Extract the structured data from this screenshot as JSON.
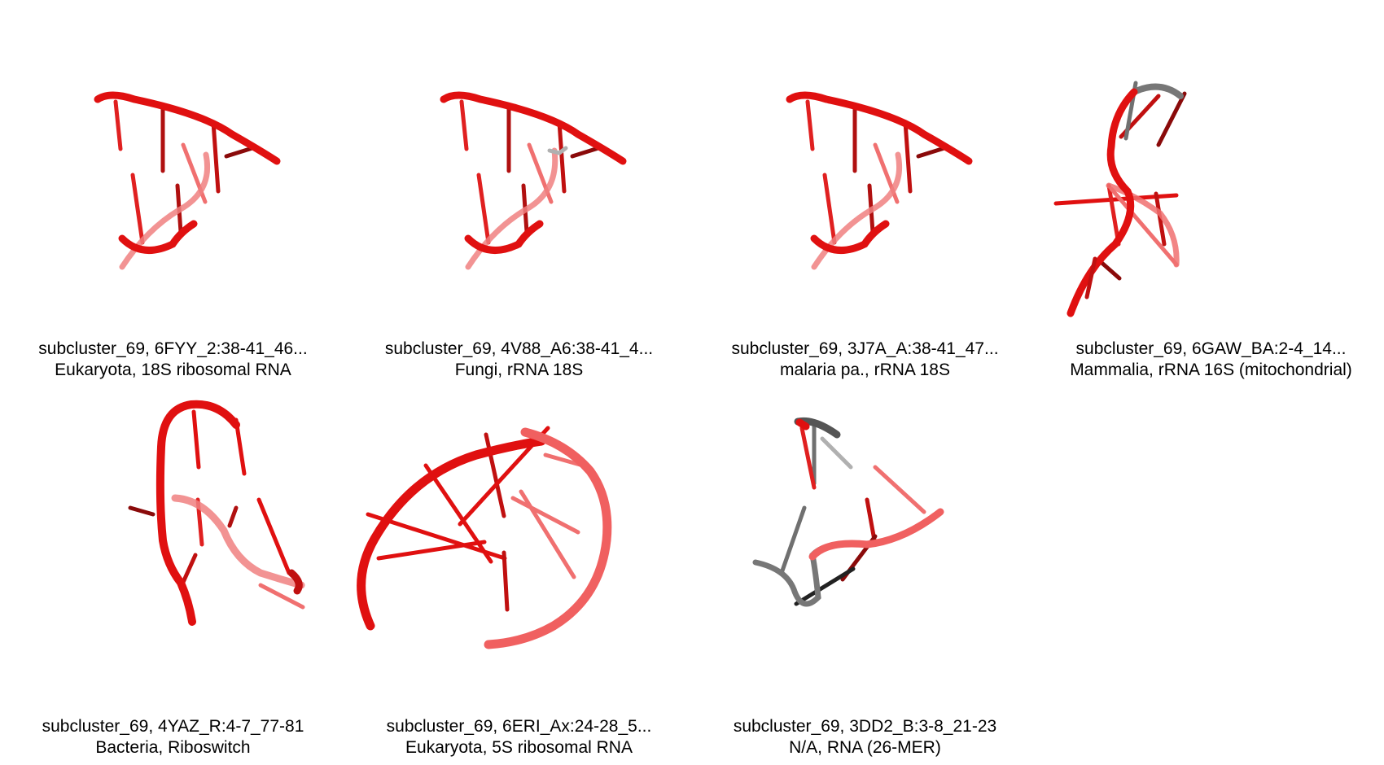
{
  "panels": [
    {
      "line1": "subcluster_69, 6FYY_2:38-41_46...",
      "line2": "Eukaryota, 18S ribosomal RNA"
    },
    {
      "line1": "subcluster_69, 4V88_A6:38-41_4...",
      "line2": "Fungi, rRNA 18S"
    },
    {
      "line1": "subcluster_69, 3J7A_A:38-41_47...",
      "line2": "malaria pa., rRNA 18S"
    },
    {
      "line1": "subcluster_69, 6GAW_BA:2-4_14...",
      "line2": "Mammalia, rRNA 16S (mitochondrial)"
    },
    {
      "line1": "subcluster_69, 4YAZ_R:4-7_77-81",
      "line2": "Bacteria, Riboswitch"
    },
    {
      "line1": "subcluster_69, 6ERI_Ax:24-28_5...",
      "line2": "Eukaryota, 5S ribosomal RNA"
    },
    {
      "line1": "subcluster_69, 3DD2_B:3-8_21-23",
      "line2": "N/A, RNA (26-MER)"
    }
  ],
  "colors": {
    "red": "#e01010",
    "light_red": "#f07070",
    "dark_red": "#8a0a0a",
    "gray": "#707070"
  }
}
